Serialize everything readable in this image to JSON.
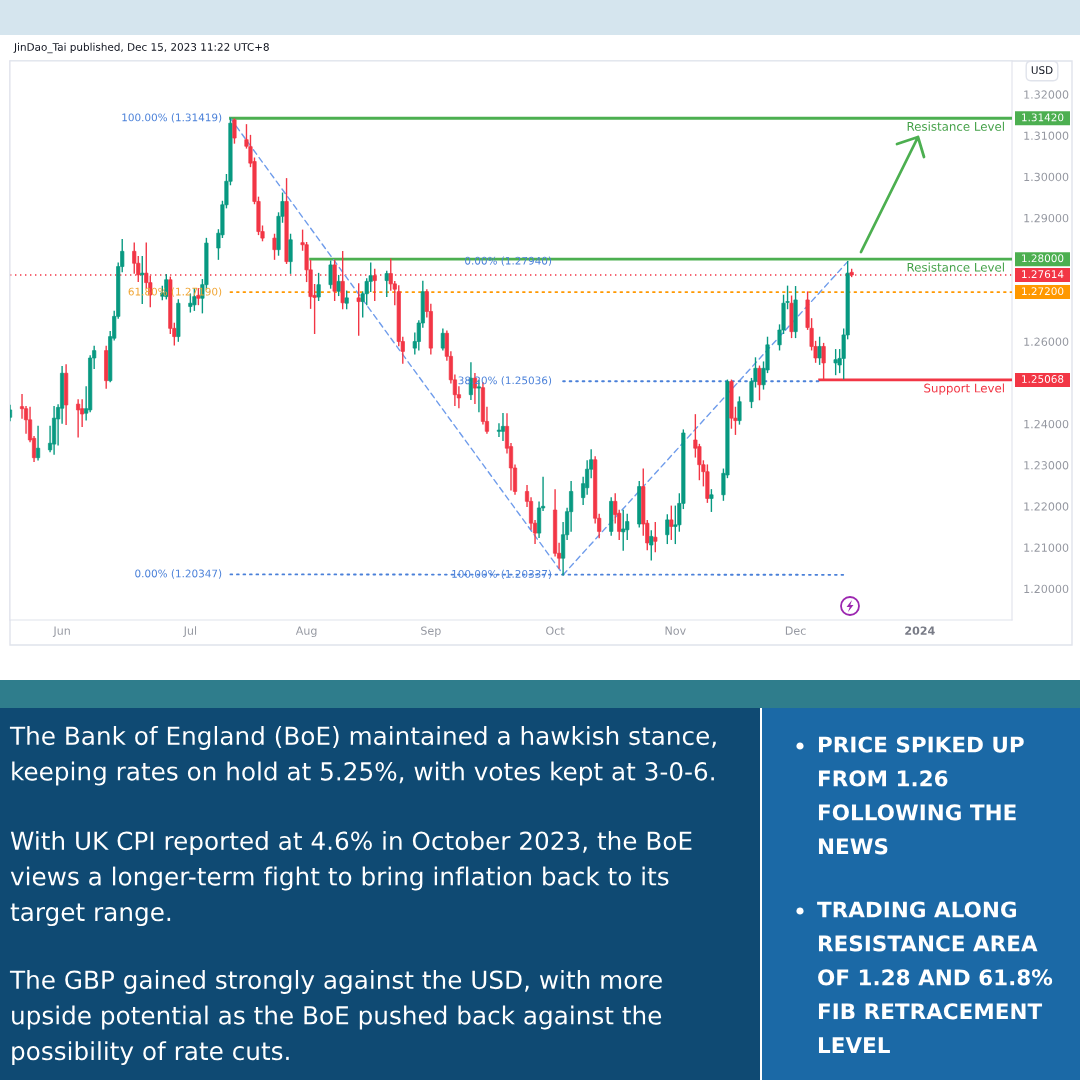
{
  "chart_data": {
    "type": "candlestick",
    "ylabel": "USD",
    "x": [
      "2023-05-19",
      "2023-05-22",
      "2023-05-23",
      "2023-05-24",
      "2023-05-25",
      "2023-05-26",
      "2023-05-29",
      "2023-05-30",
      "2023-05-31",
      "2023-06-01",
      "2023-06-02",
      "2023-06-05",
      "2023-06-06",
      "2023-06-07",
      "2023-06-08",
      "2023-06-09",
      "2023-06-12",
      "2023-06-13",
      "2023-06-14",
      "2023-06-15",
      "2023-06-16",
      "2023-06-19",
      "2023-06-20",
      "2023-06-21",
      "2023-06-22",
      "2023-06-23",
      "2023-06-26",
      "2023-06-27",
      "2023-06-28",
      "2023-06-29",
      "2023-06-30",
      "2023-07-03",
      "2023-07-04",
      "2023-07-05",
      "2023-07-06",
      "2023-07-07",
      "2023-07-10",
      "2023-07-11",
      "2023-07-12",
      "2023-07-13",
      "2023-07-14",
      "2023-07-17",
      "2023-07-18",
      "2023-07-19",
      "2023-07-20",
      "2023-07-21",
      "2023-07-24",
      "2023-07-25",
      "2023-07-26",
      "2023-07-27",
      "2023-07-28",
      "2023-07-31",
      "2023-08-01",
      "2023-08-02",
      "2023-08-03",
      "2023-08-04",
      "2023-08-07",
      "2023-08-08",
      "2023-08-09",
      "2023-08-10",
      "2023-08-11",
      "2023-08-14",
      "2023-08-15",
      "2023-08-16",
      "2023-08-17",
      "2023-08-18",
      "2023-08-21",
      "2023-08-22",
      "2023-08-23",
      "2023-08-24",
      "2023-08-25",
      "2023-08-28",
      "2023-08-29",
      "2023-08-30",
      "2023-08-31",
      "2023-09-01",
      "2023-09-04",
      "2023-09-05",
      "2023-09-06",
      "2023-09-07",
      "2023-09-08",
      "2023-09-11",
      "2023-09-12",
      "2023-09-13",
      "2023-09-14",
      "2023-09-15",
      "2023-09-18",
      "2023-09-19",
      "2023-09-20",
      "2023-09-21",
      "2023-09-22",
      "2023-09-25",
      "2023-09-26",
      "2023-09-27",
      "2023-09-28",
      "2023-09-29",
      "2023-10-02",
      "2023-10-03",
      "2023-10-04",
      "2023-10-05",
      "2023-10-06",
      "2023-10-09",
      "2023-10-10",
      "2023-10-11",
      "2023-10-12",
      "2023-10-13",
      "2023-10-16",
      "2023-10-17",
      "2023-10-18",
      "2023-10-19",
      "2023-10-20",
      "2023-10-23",
      "2023-10-24",
      "2023-10-25",
      "2023-10-26",
      "2023-10-27",
      "2023-10-30",
      "2023-10-31",
      "2023-11-01",
      "2023-11-02",
      "2023-11-03",
      "2023-11-06",
      "2023-11-07",
      "2023-11-08",
      "2023-11-09",
      "2023-11-10",
      "2023-11-13",
      "2023-11-14",
      "2023-11-15",
      "2023-11-16",
      "2023-11-17",
      "2023-11-20",
      "2023-11-21",
      "2023-11-22",
      "2023-11-23",
      "2023-11-24",
      "2023-11-27",
      "2023-11-28",
      "2023-11-29",
      "2023-11-30",
      "2023-12-01",
      "2023-12-04",
      "2023-12-05",
      "2023-12-06",
      "2023-12-07",
      "2023-12-08",
      "2023-12-11",
      "2023-12-12",
      "2023-12-13",
      "2023-12-14",
      "2023-12-15"
    ],
    "ohlc": [
      [
        1.2416,
        1.2445,
        1.2408,
        1.2434
      ],
      [
        1.2442,
        1.2471,
        1.2414,
        1.2437
      ],
      [
        1.2437,
        1.2442,
        1.2378,
        1.241
      ],
      [
        1.241,
        1.244,
        1.2357,
        1.2361
      ],
      [
        1.2365,
        1.2369,
        1.2309,
        1.2318
      ],
      [
        1.2318,
        1.2394,
        1.2313,
        1.2341
      ],
      [
        1.2337,
        1.2394,
        1.2333,
        1.2353
      ],
      [
        1.2351,
        1.2442,
        1.2327,
        1.2414
      ],
      [
        1.2412,
        1.2446,
        1.2349,
        1.244
      ],
      [
        1.2438,
        1.2539,
        1.2402,
        1.2523
      ],
      [
        1.2523,
        1.2543,
        1.2399,
        1.2446
      ],
      [
        1.2448,
        1.2458,
        1.2369,
        1.2434
      ],
      [
        1.2437,
        1.2458,
        1.2394,
        1.2424
      ],
      [
        1.2426,
        1.249,
        1.241,
        1.2437
      ],
      [
        1.2434,
        1.2565,
        1.243,
        1.256
      ],
      [
        1.256,
        1.2588,
        1.2535,
        1.2578
      ],
      [
        1.2578,
        1.2588,
        1.2487,
        1.2505
      ],
      [
        1.2505,
        1.2624,
        1.2503,
        1.2612
      ],
      [
        1.2608,
        1.2673,
        1.2604,
        1.2661
      ],
      [
        1.2661,
        1.279,
        1.2657,
        1.2782
      ],
      [
        1.2782,
        1.2847,
        1.277,
        1.2819
      ],
      [
        1.2819,
        1.2839,
        1.2766,
        1.279
      ],
      [
        1.279,
        1.2806,
        1.2746,
        1.2762
      ],
      [
        1.2762,
        1.2806,
        1.2693,
        1.2766
      ],
      [
        1.2766,
        1.2839,
        1.273,
        1.2743
      ],
      [
        1.2743,
        1.2758,
        1.2685,
        1.2713
      ],
      [
        1.271,
        1.2734,
        1.2702,
        1.2718
      ],
      [
        1.2709,
        1.2762,
        1.2704,
        1.275
      ],
      [
        1.275,
        1.2756,
        1.262,
        1.2632
      ],
      [
        1.2632,
        1.2644,
        1.2592,
        1.2612
      ],
      [
        1.2612,
        1.2701,
        1.2601,
        1.2693
      ],
      [
        1.2685,
        1.2715,
        1.2672,
        1.2693
      ],
      [
        1.2689,
        1.2728,
        1.2676,
        1.2709
      ],
      [
        1.2712,
        1.2728,
        1.269,
        1.2705
      ],
      [
        1.2705,
        1.275,
        1.267,
        1.2738
      ],
      [
        1.2738,
        1.285,
        1.2728,
        1.2839
      ],
      [
        1.2827,
        1.2871,
        1.28,
        1.2863
      ],
      [
        1.2859,
        1.294,
        1.2853,
        1.2932
      ],
      [
        1.2932,
        1.3005,
        1.2925,
        1.2989
      ],
      [
        1.2989,
        1.31419,
        1.2981,
        1.313
      ],
      [
        1.3138,
        1.314,
        1.3082,
        1.3094
      ],
      [
        1.309,
        1.3126,
        1.307,
        1.3074
      ],
      [
        1.3073,
        1.31,
        1.3025,
        1.3033
      ],
      [
        1.3037,
        1.3045,
        1.2935,
        1.294
      ],
      [
        1.294,
        1.295,
        1.286,
        1.2867
      ],
      [
        1.2867,
        1.288,
        1.2845,
        1.2851
      ],
      [
        1.2851,
        1.286,
        1.28,
        1.2823
      ],
      [
        1.2823,
        1.2912,
        1.281,
        1.2904
      ],
      [
        1.2904,
        1.296,
        1.289,
        1.294
      ],
      [
        1.294,
        1.2995,
        1.279,
        1.2794
      ],
      [
        1.2794,
        1.286,
        1.2766,
        1.2847
      ],
      [
        1.284,
        1.287,
        1.2822,
        1.2835
      ],
      [
        1.2835,
        1.284,
        1.2746,
        1.2774
      ],
      [
        1.2774,
        1.2796,
        1.2681,
        1.2709
      ],
      [
        1.2712,
        1.2738,
        1.262,
        1.2707
      ],
      [
        1.2708,
        1.2765,
        1.27,
        1.2738
      ],
      [
        1.2738,
        1.2795,
        1.273,
        1.2786
      ],
      [
        1.2786,
        1.2797,
        1.27,
        1.2722
      ],
      [
        1.2722,
        1.276,
        1.2712,
        1.2746
      ],
      [
        1.2746,
        1.2818,
        1.268,
        1.2694
      ],
      [
        1.2693,
        1.2722,
        1.268,
        1.2706
      ],
      [
        1.2706,
        1.274,
        1.2616,
        1.2697
      ],
      [
        1.2697,
        1.272,
        1.266,
        1.2716
      ],
      [
        1.2716,
        1.2752,
        1.269,
        1.2746
      ],
      [
        1.2746,
        1.279,
        1.2722,
        1.276
      ],
      [
        1.276,
        1.2775,
        1.27,
        1.2748
      ],
      [
        1.2748,
        1.277,
        1.271,
        1.2765
      ],
      [
        1.2765,
        1.28,
        1.2725,
        1.274
      ],
      [
        1.274,
        1.2745,
        1.269,
        1.2727
      ],
      [
        1.2721,
        1.2735,
        1.259,
        1.26
      ],
      [
        1.26,
        1.261,
        1.2548,
        1.2576
      ],
      [
        1.2584,
        1.262,
        1.257,
        1.26
      ],
      [
        1.26,
        1.265,
        1.258,
        1.2645
      ],
      [
        1.2645,
        1.2746,
        1.2635,
        1.2721
      ],
      [
        1.2721,
        1.2725,
        1.266,
        1.2673
      ],
      [
        1.2673,
        1.269,
        1.257,
        1.2584
      ],
      [
        1.2584,
        1.263,
        1.258,
        1.262
      ],
      [
        1.262,
        1.2625,
        1.2555,
        1.2564
      ],
      [
        1.2564,
        1.2575,
        1.25,
        1.2507
      ],
      [
        1.2507,
        1.2518,
        1.2445,
        1.2471
      ],
      [
        1.2471,
        1.249,
        1.244,
        1.2463
      ],
      [
        1.2471,
        1.2548,
        1.246,
        1.2511
      ],
      [
        1.2511,
        1.2522,
        1.245,
        1.2487
      ],
      [
        1.2487,
        1.2505,
        1.243,
        1.249
      ],
      [
        1.2488,
        1.25,
        1.24,
        1.2406
      ],
      [
        1.2406,
        1.244,
        1.2378,
        1.2382
      ],
      [
        1.2382,
        1.24,
        1.237,
        1.2385
      ],
      [
        1.2382,
        1.2425,
        1.236,
        1.2394
      ],
      [
        1.2394,
        1.2424,
        1.233,
        1.2341
      ],
      [
        1.2345,
        1.2352,
        1.224,
        1.2293
      ],
      [
        1.2293,
        1.23,
        1.223,
        1.2236
      ],
      [
        1.2236,
        1.225,
        1.22,
        1.2212
      ],
      [
        1.2212,
        1.222,
        1.2145,
        1.2159
      ],
      [
        1.2159,
        1.2165,
        1.211,
        1.2135
      ],
      [
        1.2135,
        1.221,
        1.2125,
        1.2196
      ],
      [
        1.2196,
        1.227,
        1.219,
        1.22
      ],
      [
        1.2191,
        1.224,
        1.208,
        1.2086
      ],
      [
        1.2086,
        1.211,
        1.205,
        1.2074
      ],
      [
        1.2074,
        1.216,
        1.20337,
        1.2131
      ],
      [
        1.2131,
        1.2195,
        1.212,
        1.2187
      ],
      [
        1.2187,
        1.226,
        1.214,
        1.2236
      ],
      [
        1.2221,
        1.227,
        1.2205,
        1.2255
      ],
      [
        1.2245,
        1.231,
        1.223,
        1.229
      ],
      [
        1.229,
        1.2337,
        1.227,
        1.2313
      ],
      [
        1.2313,
        1.232,
        1.216,
        1.2171
      ],
      [
        1.2171,
        1.218,
        1.2124,
        1.2139
      ],
      [
        1.2139,
        1.222,
        1.213,
        1.2212
      ],
      [
        1.2212,
        1.223,
        1.216,
        1.218
      ],
      [
        1.2183,
        1.219,
        1.212,
        1.2139
      ],
      [
        1.2138,
        1.219,
        1.2094,
        1.2145
      ],
      [
        1.2143,
        1.218,
        1.212,
        1.2163
      ],
      [
        1.2157,
        1.226,
        1.215,
        1.2248
      ],
      [
        1.2248,
        1.229,
        1.213,
        1.2157
      ],
      [
        1.2159,
        1.2165,
        1.2095,
        1.2111
      ],
      [
        1.2106,
        1.214,
        1.207,
        1.2127
      ],
      [
        1.2125,
        1.216,
        1.209,
        1.2115
      ],
      [
        1.2131,
        1.2179,
        1.211,
        1.2167
      ],
      [
        1.2167,
        1.22,
        1.212,
        1.2151
      ],
      [
        1.2151,
        1.22,
        1.211,
        1.2155
      ],
      [
        1.2155,
        1.223,
        1.214,
        1.2207
      ],
      [
        1.2207,
        1.2385,
        1.2195,
        1.2378
      ],
      [
        1.2361,
        1.2422,
        1.232,
        1.2341
      ],
      [
        1.2345,
        1.235,
        1.2265,
        1.2301
      ],
      [
        1.2301,
        1.231,
        1.225,
        1.2284
      ],
      [
        1.2284,
        1.23,
        1.221,
        1.2219
      ],
      [
        1.2219,
        1.224,
        1.2188,
        1.2228
      ],
      [
        1.2228,
        1.229,
        1.2215,
        1.228
      ],
      [
        1.2276,
        1.2506,
        1.227,
        1.2503
      ],
      [
        1.2503,
        1.2506,
        1.239,
        1.2414
      ],
      [
        1.2414,
        1.244,
        1.2375,
        1.2408
      ],
      [
        1.2408,
        1.2465,
        1.24,
        1.2454
      ],
      [
        1.2454,
        1.251,
        1.244,
        1.2503
      ],
      [
        1.2503,
        1.256,
        1.249,
        1.2535
      ],
      [
        1.2535,
        1.254,
        1.2459,
        1.2495
      ],
      [
        1.2495,
        1.255,
        1.2485,
        1.2535
      ],
      [
        1.2531,
        1.261,
        1.2525,
        1.2592
      ],
      [
        1.2592,
        1.264,
        1.258,
        1.2628
      ],
      [
        1.2628,
        1.2712,
        1.262,
        1.2693
      ],
      [
        1.2695,
        1.2734,
        1.268,
        1.2697
      ],
      [
        1.2693,
        1.271,
        1.261,
        1.2624
      ],
      [
        1.2624,
        1.2733,
        1.261,
        1.2701
      ],
      [
        1.2701,
        1.272,
        1.263,
        1.2634
      ],
      [
        1.2632,
        1.2655,
        1.258,
        1.2588
      ],
      [
        1.2588,
        1.26,
        1.255,
        1.256
      ],
      [
        1.256,
        1.261,
        1.2545,
        1.2588
      ],
      [
        1.2588,
        1.2595,
        1.25068,
        1.2548
      ],
      [
        1.2548,
        1.258,
        1.252,
        1.2556
      ],
      [
        1.2543,
        1.258,
        1.2525,
        1.2559
      ],
      [
        1.2559,
        1.263,
        1.251,
        1.2616
      ],
      [
        1.2616,
        1.2794,
        1.2607,
        1.2766
      ],
      [
        1.2768,
        1.2775,
        1.2758,
        1.27614
      ]
    ],
    "colors": [
      "#089981",
      "#f23645",
      "#f23645",
      "#f23645",
      "#f23645",
      "#089981",
      "#089981",
      "#089981",
      "#089981",
      "#089981",
      "#f23645",
      "#f23645",
      "#f23645",
      "#089981",
      "#089981",
      "#089981",
      "#f23645",
      "#089981",
      "#089981",
      "#089981",
      "#089981",
      "#f23645",
      "#f23645",
      "#089981",
      "#f23645",
      "#f23645",
      "#089981",
      "#089981",
      "#f23645",
      "#f23645",
      "#089981",
      "#089981",
      "#089981",
      "#f23645",
      "#089981",
      "#089981",
      "#089981",
      "#089981",
      "#089981",
      "#089981",
      "#f23645",
      "#f23645",
      "#f23645",
      "#f23645",
      "#f23645",
      "#f23645",
      "#f23645",
      "#089981",
      "#089981",
      "#f23645",
      "#089981",
      "#f23645",
      "#f23645",
      "#f23645",
      "#f23645",
      "#089981",
      "#089981",
      "#f23645",
      "#089981",
      "#f23645",
      "#089981",
      "#f23645",
      "#089981",
      "#089981",
      "#089981",
      "#f23645",
      "#089981",
      "#f23645",
      "#f23645",
      "#f23645",
      "#f23645",
      "#089981",
      "#089981",
      "#089981",
      "#f23645",
      "#f23645",
      "#089981",
      "#f23645",
      "#f23645",
      "#f23645",
      "#f23645",
      "#089981",
      "#f23645",
      "#089981",
      "#f23645",
      "#f23645",
      "#089981",
      "#089981",
      "#f23645",
      "#f23645",
      "#f23645",
      "#f23645",
      "#f23645",
      "#f23645",
      "#089981",
      "#089981",
      "#f23645",
      "#f23645",
      "#089981",
      "#089981",
      "#089981",
      "#089981",
      "#089981",
      "#089981",
      "#f23645",
      "#f23645",
      "#089981",
      "#f23645",
      "#f23645",
      "#089981",
      "#089981",
      "#089981",
      "#f23645",
      "#f23645",
      "#089981",
      "#f23645",
      "#089981",
      "#f23645",
      "#089981",
      "#089981",
      "#089981",
      "#f23645",
      "#f23645",
      "#f23645",
      "#f23645",
      "#089981",
      "#089981",
      "#089981",
      "#f23645",
      "#f23645",
      "#089981",
      "#089981",
      "#089981",
      "#f23645",
      "#089981",
      "#089981",
      "#089981",
      "#089981",
      "#089981",
      "#f23645",
      "#089981",
      "#f23645",
      "#f23645",
      "#f23645",
      "#089981",
      "#f23645",
      "#089981",
      "#089981",
      "#089981",
      "#089981",
      "#f23645"
    ],
    "series": [
      {
        "type": "line",
        "name": "1.31420",
        "color": "#4caf50",
        "x": [
          "2023-07-13",
          "2024-01-24"
        ],
        "values": [
          1.3142,
          1.3142
        ],
        "line_style": "solid"
      },
      {
        "type": "line",
        "name": "1.28000",
        "color": "#4caf50",
        "x": [
          "2023-08-02",
          "2024-01-24"
        ],
        "values": [
          1.28,
          1.28
        ],
        "line_style": "solid"
      },
      {
        "type": "line",
        "name": "1.27200",
        "color": "#ff9800",
        "x": [
          "2023-07-13",
          "2024-01-24"
        ],
        "values": [
          1.272,
          1.272
        ],
        "line_style": "dotted"
      },
      {
        "type": "line",
        "name": "1.25068",
        "color": "#f23645",
        "x": [
          "2023-12-07",
          "2024-01-24"
        ],
        "values": [
          1.25068,
          1.25068
        ],
        "line_style": "solid"
      },
      {
        "type": "line",
        "color": "#6f9ceb",
        "x": [
          "2023-07-13",
          "2023-10-04"
        ],
        "values": [
          1.31419,
          1.20347
        ],
        "line_style": "dashed"
      },
      {
        "type": "line",
        "color": "#6f9ceb",
        "x": [
          "2023-10-04",
          "2023-12-14"
        ],
        "values": [
          1.20337,
          1.2794
        ],
        "line_style": "dashed"
      },
      {
        "type": "line",
        "color": "#4a80d9",
        "x": [
          "2023-07-13",
          "2023-12-14"
        ],
        "values": [
          1.20347,
          1.20337
        ],
        "line_style": "dotted"
      },
      {
        "type": "line",
        "color": "#4a80d9",
        "x": [
          "2023-10-04",
          "2023-12-07"
        ],
        "values": [
          1.25036,
          1.25036
        ],
        "line_style": "dotted"
      }
    ],
    "ref_lines": [
      {
        "axis": "y",
        "value": 1.27614,
        "label": "1.27614",
        "color": "#f23645",
        "line_style": "dotted"
      }
    ],
    "xlim": [
      "2023-05-19",
      "2024-01-24"
    ],
    "ylim": [
      1.1924,
      1.3281
    ],
    "xticks": [
      {
        "value": "2023-06-01",
        "label": "Jun"
      },
      {
        "value": "2023-07-03",
        "label": "Jul"
      },
      {
        "value": "2023-08-01",
        "label": "Aug"
      },
      {
        "value": "2023-09-01",
        "label": "Sep"
      },
      {
        "value": "2023-10-02",
        "label": "Oct"
      },
      {
        "value": "2023-11-01",
        "label": "Nov"
      },
      {
        "value": "2023-12-01",
        "label": "Dec"
      },
      {
        "value": "2024-01-01",
        "label": "2024"
      }
    ],
    "yticks": [
      {
        "value": 1.2,
        "label": "1.20000"
      },
      {
        "value": 1.21,
        "label": "1.21000"
      },
      {
        "value": 1.22,
        "label": "1.22000"
      },
      {
        "value": 1.23,
        "label": "1.23000"
      },
      {
        "value": 1.24,
        "label": "1.24000"
      },
      {
        "value": 1.26,
        "label": "1.26000"
      },
      {
        "value": 1.29,
        "label": "1.29000"
      },
      {
        "value": 1.3,
        "label": "1.30000"
      },
      {
        "value": 1.31,
        "label": "1.31000"
      },
      {
        "value": 1.32,
        "label": "1.32000"
      }
    ],
    "annotations": [
      "JinDao_Tai published, Dec 15, 2023 11:22 UTC+8",
      {
        "text": "100.00% (1.31419)",
        "x": "2023-07-13",
        "y": 1.31419
      },
      {
        "text": "61.80% (1.27190)",
        "x": "2023-07-13",
        "y": 1.2719
      },
      {
        "text": "0.00% (1.20347)",
        "x": "2023-07-13",
        "y": 1.20347
      },
      {
        "text": "0.00% (1.27940)",
        "x": "2023-10-04",
        "y": 1.2794
      },
      {
        "text": "38.20% (1.25036)",
        "x": "2023-10-04",
        "y": 1.25036
      },
      {
        "text": "100.00% (1.20337)",
        "x": "2023-10-04",
        "y": 1.20337
      },
      {
        "text": "Resistance Level",
        "x": "2024-01-24",
        "y": 1.3142
      },
      {
        "text": "Resistance Level",
        "x": "2024-01-24",
        "y": 1.28
      },
      {
        "text": "Support Level",
        "x": "2024-01-24",
        "y": 1.25068
      },
      "The Bank of England (BoE) maintained a hawkish stance,\nkeeping rates on hold at 5.25%, with votes kept at 3-0-6.",
      "With UK CPI reported at 4.6% in October 2023, the BoE\nviews a longer-term fight to bring inflation back to its\ntarget range.",
      "The GBP gained strongly against the USD, with more\nupside potential as the BoE pushed back against the\npossibility of rate cuts.",
      "PRICE SPIKED UP\nFROM 1.26\nFOLLOWING THE\nNEWS",
      "TRADING ALONG\nRESISTANCE AREA\nOF 1.28 AND 61.8%\nFIB RETRACEMENT\nLEVEL"
    ]
  }
}
